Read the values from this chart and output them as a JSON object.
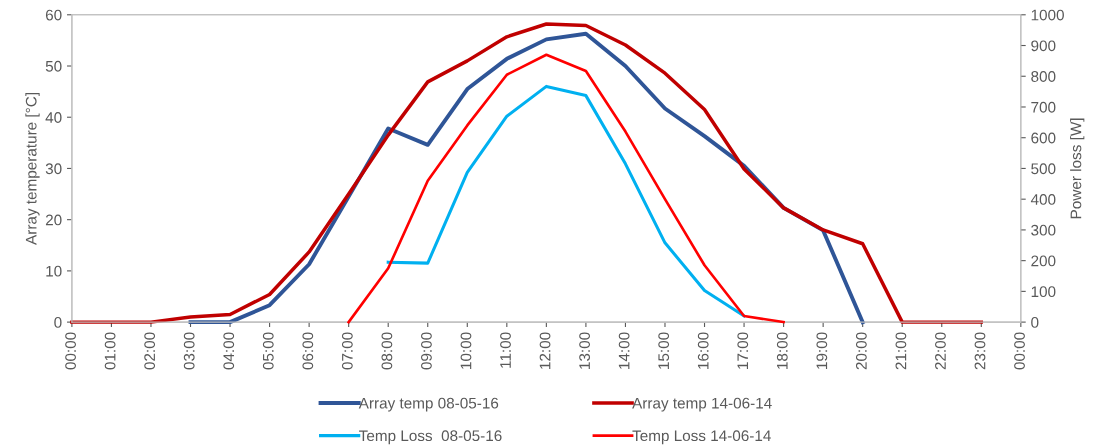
{
  "chart_data": {
    "type": "line",
    "categories": [
      "00:00",
      "01:00",
      "02:00",
      "03:00",
      "04:00",
      "05:00",
      "06:00",
      "07:00",
      "08:00",
      "09:00",
      "10:00",
      "11:00",
      "12:00",
      "13:00",
      "14:00",
      "15:00",
      "16:00",
      "17:00",
      "18:00",
      "19:00",
      "20:00",
      "21:00",
      "22:00",
      "23:00",
      "00:00"
    ],
    "ylabel": "Array temperature [°C]",
    "y2label": "Power loss [W]",
    "ylim": [
      0,
      60
    ],
    "yticks": [
      0,
      10,
      20,
      30,
      40,
      50,
      60
    ],
    "y2lim": [
      0,
      1000
    ],
    "y2ticks": [
      0,
      100,
      200,
      300,
      400,
      500,
      600,
      700,
      800,
      900,
      1000
    ],
    "grid": false,
    "legend": "bottom",
    "marker": "none",
    "line_style": "solid",
    "series": [
      {
        "name": "Array temp 08-05-16",
        "color": "#2f5597",
        "values": [
          null,
          null,
          null,
          0,
          0,
          3.3,
          11.3,
          24.5,
          37.8,
          34.6,
          45.5,
          51.4,
          55.2,
          56.3,
          50.0,
          41.7,
          36.3,
          30.5,
          22.3,
          17.9,
          0,
          null,
          null,
          null,
          null
        ]
      },
      {
        "name": "Array temp 14-06-14",
        "color": "#c00000",
        "values": [
          0,
          0,
          0,
          1.0,
          1.5,
          5.4,
          13.7,
          25.0,
          36.5,
          46.9,
          51.0,
          55.7,
          58.2,
          57.9,
          54.1,
          48.6,
          41.5,
          29.9,
          22.3,
          18.0,
          15.3,
          0,
          0,
          0,
          null
        ]
      },
      {
        "name": "Temp Loss  08-05-16",
        "color": "#00b0f0",
        "axis": "y2",
        "values": [
          null,
          null,
          null,
          null,
          null,
          null,
          null,
          null,
          195,
          192,
          487,
          670,
          767,
          737,
          515,
          258,
          103,
          20,
          null,
          null,
          null,
          null,
          null,
          null,
          null
        ]
      },
      {
        "name": "Temp Loss 14-06-14",
        "color": "#ff0000",
        "axis": "y2",
        "values": [
          null,
          null,
          null,
          null,
          null,
          null,
          null,
          0,
          175,
          460,
          640,
          805,
          870,
          817,
          620,
          400,
          185,
          20,
          0,
          null,
          null,
          null,
          null,
          null,
          null
        ]
      }
    ]
  }
}
